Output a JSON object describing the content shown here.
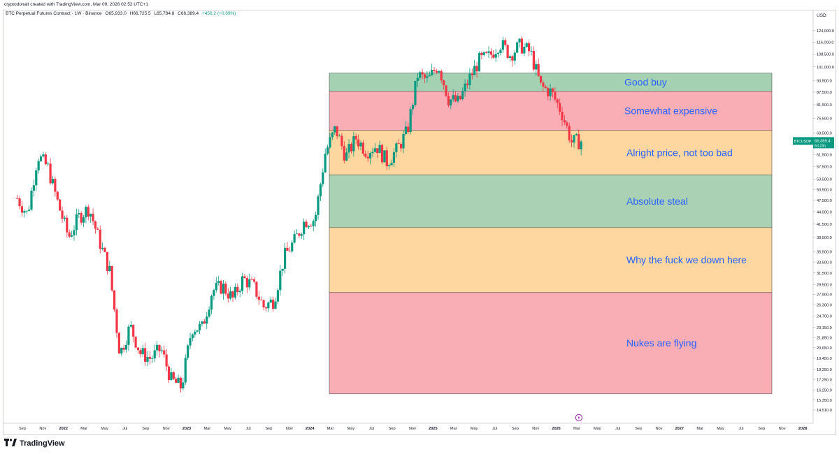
{
  "credit": "cryptodonalt created with TradingView.com, Mar 09, 2026 02:52 UTC+1",
  "header": {
    "symbol": "BTC Perpetual Futures Contract · 1W · Binance",
    "open": "O65,933.0",
    "high": "H66,725.5",
    "low": "L65,784.8",
    "close": "C66,389.4",
    "change": "+456.2 (+0.69%)"
  },
  "brand": {
    "logo_text": "TradingView",
    "accent": "#131722"
  },
  "price_tag": {
    "ticker": "BTCUSDP",
    "price": "66,389.4",
    "countdown": "6d 23h",
    "color": "#089981"
  },
  "event_marker_icon": "lightning-icon",
  "chart_data": {
    "type": "candlestick",
    "currency": "USD",
    "scale": "log",
    "ylim": [
      14000,
      134000
    ],
    "y_ticks": [
      14510.0,
      15350.0,
      16250.0,
      17250.0,
      18250.0,
      19450.0,
      20650.0,
      21850.0,
      23150.0,
      24700.0,
      26300.0,
      27900.0,
      29500.0,
      31500.0,
      33500.0,
      35500.0,
      38500.0,
      41500.0,
      44500.0,
      47500.0,
      50500.0,
      53500.0,
      57500.0,
      61500.0,
      65500.0,
      69500.0,
      75500.0,
      81500.0,
      87500.0,
      93500.0,
      101000.0,
      108500.0,
      116000.0,
      124000.0,
      132000.0
    ],
    "x_ticks": [
      "Sep",
      "Nov",
      "2022",
      "Mar",
      "May",
      "Jul",
      "Sep",
      "Nov",
      "2023",
      "Mar",
      "May",
      "Jul",
      "Sep",
      "Nov",
      "2024",
      "Mar",
      "May",
      "Jul",
      "Sep",
      "Nov",
      "2025",
      "Mar",
      "May",
      "Jul",
      "Sep",
      "Nov",
      "2026",
      "Mar",
      "May",
      "Jul",
      "Sep",
      "Nov",
      "2027",
      "Mar",
      "May",
      "Jul",
      "Sep",
      "Nov",
      "2028"
    ],
    "x_tick_bold": [
      "2022",
      "2023",
      "2024",
      "2025",
      "2026",
      "2027",
      "2028"
    ],
    "x_range_months": [
      "2021-08",
      "2028-01"
    ],
    "up_color": "#089981",
    "down_color": "#f23645",
    "ohlc_series": [
      {
        "date": "2021-08",
        "close": 48000
      },
      {
        "date": "2021-09",
        "close": 43800
      },
      {
        "date": "2021-10",
        "close": 61300
      },
      {
        "date": "2021-11",
        "close": 57000
      },
      {
        "date": "2021-12",
        "close": 46300
      },
      {
        "date": "2022-01",
        "close": 38500
      },
      {
        "date": "2022-02",
        "close": 43200
      },
      {
        "date": "2022-03",
        "close": 45500
      },
      {
        "date": "2022-04",
        "close": 37700
      },
      {
        "date": "2022-05",
        "close": 31800
      },
      {
        "date": "2022-06",
        "close": 19900
      },
      {
        "date": "2022-07",
        "close": 23300
      },
      {
        "date": "2022-08",
        "close": 20000
      },
      {
        "date": "2022-09",
        "close": 19400
      },
      {
        "date": "2022-10",
        "close": 20500
      },
      {
        "date": "2022-11",
        "close": 17200
      },
      {
        "date": "2022-12",
        "close": 16500
      },
      {
        "date": "2023-01",
        "close": 23100
      },
      {
        "date": "2023-02",
        "close": 23100
      },
      {
        "date": "2023-03",
        "close": 28500
      },
      {
        "date": "2023-04",
        "close": 29200
      },
      {
        "date": "2023-05",
        "close": 27200
      },
      {
        "date": "2023-06",
        "close": 30500
      },
      {
        "date": "2023-07",
        "close": 29200
      },
      {
        "date": "2023-08",
        "close": 26000
      },
      {
        "date": "2023-09",
        "close": 27000
      },
      {
        "date": "2023-10",
        "close": 34500
      },
      {
        "date": "2023-11",
        "close": 37700
      },
      {
        "date": "2023-12",
        "close": 42300
      },
      {
        "date": "2024-01",
        "close": 42600
      },
      {
        "date": "2024-02",
        "close": 62000
      },
      {
        "date": "2024-03",
        "close": 71300
      },
      {
        "date": "2024-04",
        "close": 60600
      },
      {
        "date": "2024-05",
        "close": 67500
      },
      {
        "date": "2024-06",
        "close": 62700
      },
      {
        "date": "2024-07",
        "close": 64600
      },
      {
        "date": "2024-08",
        "close": 59000
      },
      {
        "date": "2024-09",
        "close": 63300
      },
      {
        "date": "2024-10",
        "close": 70200
      },
      {
        "date": "2024-11",
        "close": 96400
      },
      {
        "date": "2024-12",
        "close": 93400
      },
      {
        "date": "2025-01",
        "close": 102400
      },
      {
        "date": "2025-02",
        "close": 84300
      },
      {
        "date": "2025-03",
        "close": 82500
      },
      {
        "date": "2025-04",
        "close": 94200
      },
      {
        "date": "2025-05",
        "close": 104600
      },
      {
        "date": "2025-06",
        "close": 107100
      },
      {
        "date": "2025-07",
        "close": 115700
      },
      {
        "date": "2025-08",
        "close": 108200
      },
      {
        "date": "2025-09",
        "close": 114000
      },
      {
        "date": "2025-10",
        "close": 109500
      },
      {
        "date": "2025-11",
        "close": 90300
      },
      {
        "date": "2025-12",
        "close": 87500
      },
      {
        "date": "2026-01",
        "close": 78500
      },
      {
        "date": "2026-02",
        "close": 66000
      },
      {
        "date": "2026-03",
        "close": 66389.4
      }
    ],
    "zones": [
      {
        "label": "Good buy",
        "top": 97500,
        "bottom": 88000,
        "color": "#9fcfad"
      },
      {
        "label": "Somewhat expensive",
        "top": 88000,
        "bottom": 70500,
        "color": "#f9a9b0"
      },
      {
        "label": "Alright price, not too bad",
        "top": 70500,
        "bottom": 54800,
        "color": "#fdd59a"
      },
      {
        "label": "Absolute steal",
        "top": 54800,
        "bottom": 40700,
        "color": "#a5cfb0"
      },
      {
        "label": "Why the fuck we down here",
        "top": 40700,
        "bottom": 28200,
        "color": "#fdd59a"
      },
      {
        "label": "Nukes are flying",
        "top": 28200,
        "bottom": 15900,
        "color": "#f9a9b0"
      }
    ],
    "zone_label_color": "#2962ff"
  }
}
